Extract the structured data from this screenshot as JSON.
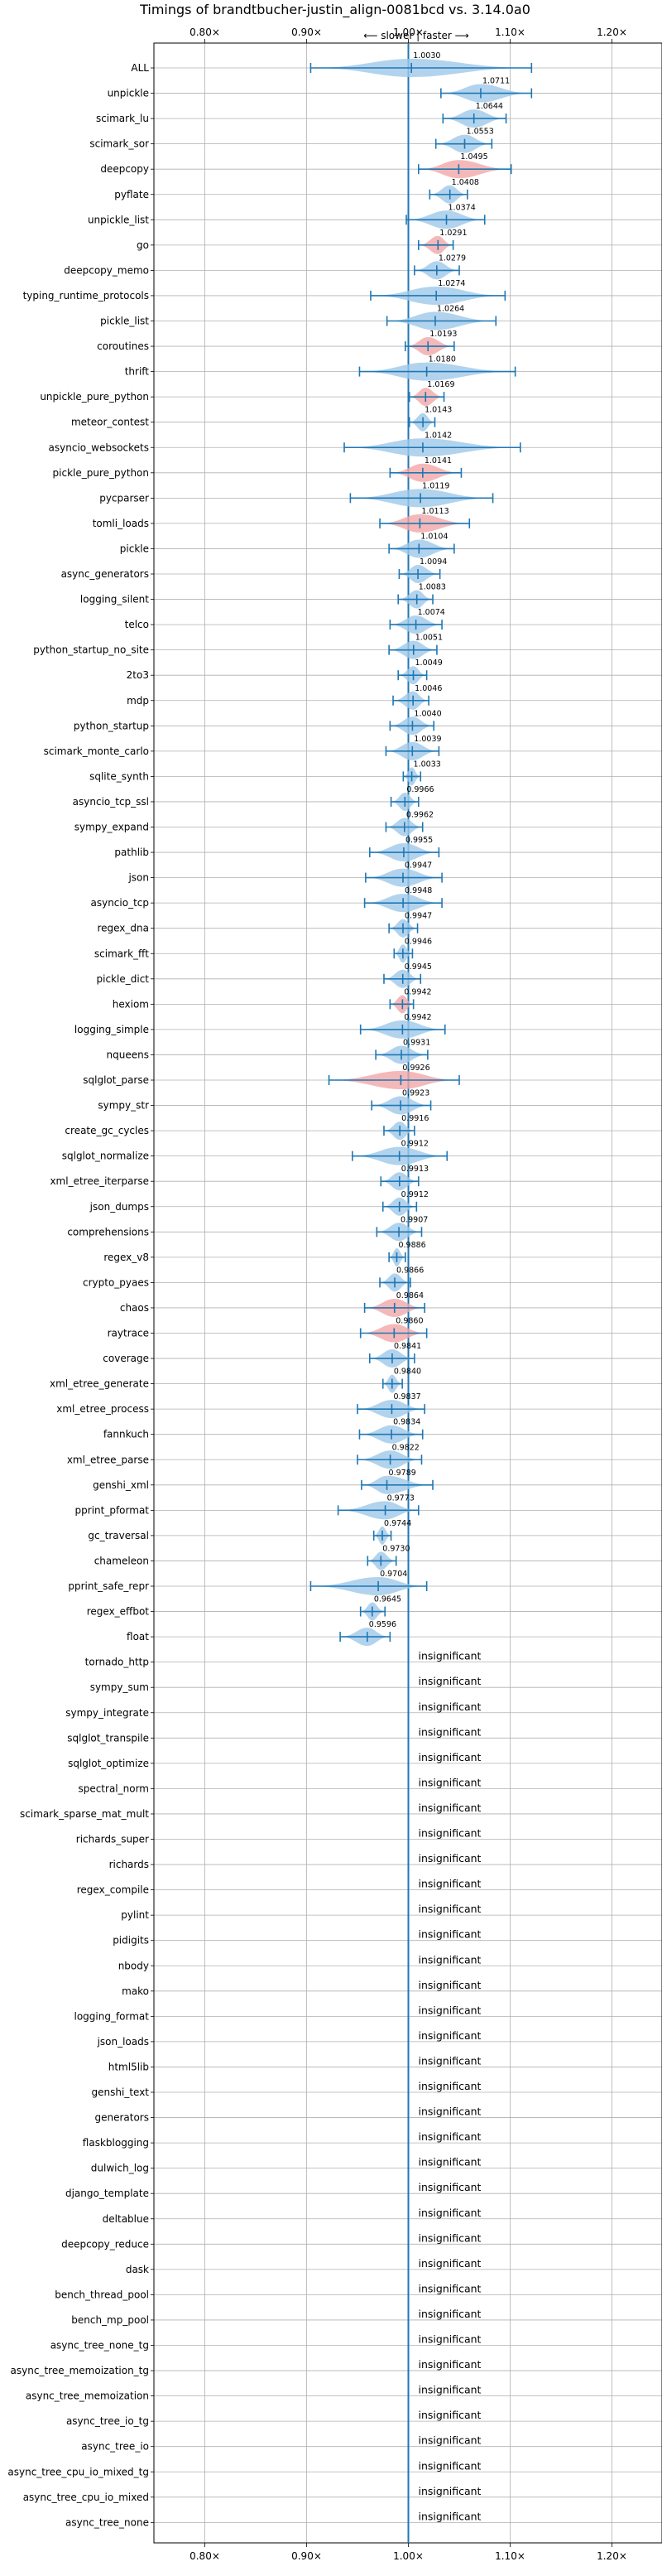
{
  "chart_data": {
    "type": "violin",
    "title": "Timings of brandtbucher-justin_align-0081bcd vs. 3.14.0a0",
    "direction_label": "⟵ slower | faster ⟶",
    "xlim": [
      0.75,
      1.25
    ],
    "xticks": [
      0.8,
      0.9,
      1.0,
      1.1,
      1.2
    ],
    "xtick_labels": [
      "0.80×",
      "0.90×",
      "1.00×",
      "1.10×",
      "1.20×"
    ],
    "reference_line": 1.0,
    "grid": true,
    "colors": {
      "faster": "#9fc8e8",
      "slower": "#f3a6a8",
      "accent": "#1f77b4",
      "grid": "#b0b0b0"
    },
    "insignificant_label": "insignificant",
    "benchmarks": [
      {
        "name": "ALL",
        "value": 1.003,
        "label": "1.0030",
        "min": 0.904,
        "max": 1.121,
        "color": "faster"
      },
      {
        "name": "unpickle",
        "value": 1.0711,
        "label": "1.0711",
        "min": 1.032,
        "max": 1.121,
        "color": "faster"
      },
      {
        "name": "scimark_lu",
        "value": 1.0644,
        "label": "1.0644",
        "min": 1.034,
        "max": 1.096,
        "color": "faster"
      },
      {
        "name": "scimark_sor",
        "value": 1.0553,
        "label": "1.0553",
        "min": 1.027,
        "max": 1.082,
        "color": "faster"
      },
      {
        "name": "deepcopy",
        "value": 1.0495,
        "label": "1.0495",
        "min": 1.01,
        "max": 1.101,
        "color": "slower"
      },
      {
        "name": "pyflate",
        "value": 1.0408,
        "label": "1.0408",
        "min": 1.021,
        "max": 1.058,
        "color": "faster"
      },
      {
        "name": "unpickle_list",
        "value": 1.0374,
        "label": "1.0374",
        "min": 0.998,
        "max": 1.075,
        "color": "faster"
      },
      {
        "name": "go",
        "value": 1.0291,
        "label": "1.0291",
        "min": 1.01,
        "max": 1.044,
        "color": "slower"
      },
      {
        "name": "deepcopy_memo",
        "value": 1.0279,
        "label": "1.0279",
        "min": 1.006,
        "max": 1.05,
        "color": "faster"
      },
      {
        "name": "typing_runtime_protocols",
        "value": 1.0274,
        "label": "1.0274",
        "min": 0.963,
        "max": 1.095,
        "color": "faster"
      },
      {
        "name": "pickle_list",
        "value": 1.0264,
        "label": "1.0264",
        "min": 0.979,
        "max": 1.086,
        "color": "faster"
      },
      {
        "name": "coroutines",
        "value": 1.0193,
        "label": "1.0193",
        "min": 0.997,
        "max": 1.045,
        "color": "slower"
      },
      {
        "name": "thrift",
        "value": 1.018,
        "label": "1.0180",
        "min": 0.952,
        "max": 1.105,
        "color": "faster"
      },
      {
        "name": "unpickle_pure_python",
        "value": 1.0169,
        "label": "1.0169",
        "min": 1.001,
        "max": 1.035,
        "color": "slower"
      },
      {
        "name": "meteor_contest",
        "value": 1.0143,
        "label": "1.0143",
        "min": 1.001,
        "max": 1.026,
        "color": "faster"
      },
      {
        "name": "asyncio_websockets",
        "value": 1.0142,
        "label": "1.0142",
        "min": 0.937,
        "max": 1.11,
        "color": "faster"
      },
      {
        "name": "pickle_pure_python",
        "value": 1.0141,
        "label": "1.0141",
        "min": 0.982,
        "max": 1.052,
        "color": "slower"
      },
      {
        "name": "pycparser",
        "value": 1.0119,
        "label": "1.0119",
        "min": 0.943,
        "max": 1.083,
        "color": "faster"
      },
      {
        "name": "tomli_loads",
        "value": 1.0113,
        "label": "1.0113",
        "min": 0.972,
        "max": 1.06,
        "color": "slower"
      },
      {
        "name": "pickle",
        "value": 1.0104,
        "label": "1.0104",
        "min": 0.981,
        "max": 1.045,
        "color": "faster"
      },
      {
        "name": "async_generators",
        "value": 1.0094,
        "label": "1.0094",
        "min": 0.991,
        "max": 1.031,
        "color": "faster"
      },
      {
        "name": "logging_silent",
        "value": 1.0083,
        "label": "1.0083",
        "min": 0.99,
        "max": 1.024,
        "color": "faster"
      },
      {
        "name": "telco",
        "value": 1.0074,
        "label": "1.0074",
        "min": 0.982,
        "max": 1.033,
        "color": "faster"
      },
      {
        "name": "python_startup_no_site",
        "value": 1.0051,
        "label": "1.0051",
        "min": 0.981,
        "max": 1.028,
        "color": "faster"
      },
      {
        "name": "2to3",
        "value": 1.0049,
        "label": "1.0049",
        "min": 0.99,
        "max": 1.018,
        "color": "faster"
      },
      {
        "name": "mdp",
        "value": 1.0046,
        "label": "1.0046",
        "min": 0.985,
        "max": 1.02,
        "color": "faster"
      },
      {
        "name": "python_startup",
        "value": 1.004,
        "label": "1.0040",
        "min": 0.982,
        "max": 1.025,
        "color": "faster"
      },
      {
        "name": "scimark_monte_carlo",
        "value": 1.0039,
        "label": "1.0039",
        "min": 0.978,
        "max": 1.03,
        "color": "faster"
      },
      {
        "name": "sqlite_synth",
        "value": 1.0033,
        "label": "1.0033",
        "min": 0.995,
        "max": 1.012,
        "color": "faster"
      },
      {
        "name": "asyncio_tcp_ssl",
        "value": 0.9966,
        "label": "0.9966",
        "min": 0.983,
        "max": 1.01,
        "color": "faster"
      },
      {
        "name": "sympy_expand",
        "value": 0.9962,
        "label": "0.9962",
        "min": 0.978,
        "max": 1.014,
        "color": "faster"
      },
      {
        "name": "pathlib",
        "value": 0.9955,
        "label": "0.9955",
        "min": 0.962,
        "max": 1.03,
        "color": "faster"
      },
      {
        "name": "json",
        "value": 0.9947,
        "label": "0.9947",
        "min": 0.958,
        "max": 1.033,
        "color": "faster"
      },
      {
        "name": "asyncio_tcp",
        "value": 0.9948,
        "label": "0.9948",
        "min": 0.957,
        "max": 1.033,
        "color": "faster"
      },
      {
        "name": "regex_dna",
        "value": 0.9947,
        "label": "0.9947",
        "min": 0.981,
        "max": 1.009,
        "color": "faster"
      },
      {
        "name": "scimark_fft",
        "value": 0.9946,
        "label": "0.9946",
        "min": 0.986,
        "max": 1.004,
        "color": "faster"
      },
      {
        "name": "pickle_dict",
        "value": 0.9945,
        "label": "0.9945",
        "min": 0.976,
        "max": 1.012,
        "color": "faster"
      },
      {
        "name": "hexiom",
        "value": 0.9942,
        "label": "0.9942",
        "min": 0.982,
        "max": 1.005,
        "color": "slower"
      },
      {
        "name": "logging_simple",
        "value": 0.9942,
        "label": "0.9942",
        "min": 0.953,
        "max": 1.036,
        "color": "faster"
      },
      {
        "name": "nqueens",
        "value": 0.9931,
        "label": "0.9931",
        "min": 0.968,
        "max": 1.019,
        "color": "faster"
      },
      {
        "name": "sqlglot_parse",
        "value": 0.9926,
        "label": "0.9926",
        "min": 0.922,
        "max": 1.05,
        "color": "slower"
      },
      {
        "name": "sympy_str",
        "value": 0.9923,
        "label": "0.9923",
        "min": 0.964,
        "max": 1.022,
        "color": "faster"
      },
      {
        "name": "create_gc_cycles",
        "value": 0.9916,
        "label": "0.9916",
        "min": 0.976,
        "max": 1.006,
        "color": "faster"
      },
      {
        "name": "sqlglot_normalize",
        "value": 0.9912,
        "label": "0.9912",
        "min": 0.945,
        "max": 1.038,
        "color": "faster"
      },
      {
        "name": "xml_etree_iterparse",
        "value": 0.9913,
        "label": "0.9913",
        "min": 0.973,
        "max": 1.01,
        "color": "faster"
      },
      {
        "name": "json_dumps",
        "value": 0.9912,
        "label": "0.9912",
        "min": 0.975,
        "max": 1.008,
        "color": "faster"
      },
      {
        "name": "comprehensions",
        "value": 0.9907,
        "label": "0.9907",
        "min": 0.969,
        "max": 1.013,
        "color": "faster"
      },
      {
        "name": "regex_v8",
        "value": 0.9886,
        "label": "0.9886",
        "min": 0.981,
        "max": 0.997,
        "color": "faster"
      },
      {
        "name": "crypto_pyaes",
        "value": 0.9866,
        "label": "0.9866",
        "min": 0.972,
        "max": 1.002,
        "color": "faster"
      },
      {
        "name": "chaos",
        "value": 0.9864,
        "label": "0.9864",
        "min": 0.957,
        "max": 1.016,
        "color": "slower"
      },
      {
        "name": "raytrace",
        "value": 0.986,
        "label": "0.9860",
        "min": 0.953,
        "max": 1.018,
        "color": "slower"
      },
      {
        "name": "coverage",
        "value": 0.9841,
        "label": "0.9841",
        "min": 0.962,
        "max": 1.006,
        "color": "faster"
      },
      {
        "name": "xml_etree_generate",
        "value": 0.984,
        "label": "0.9840",
        "min": 0.975,
        "max": 0.994,
        "color": "faster"
      },
      {
        "name": "xml_etree_process",
        "value": 0.9837,
        "label": "0.9837",
        "min": 0.95,
        "max": 1.016,
        "color": "faster"
      },
      {
        "name": "fannkuch",
        "value": 0.9834,
        "label": "0.9834",
        "min": 0.952,
        "max": 1.014,
        "color": "faster"
      },
      {
        "name": "xml_etree_parse",
        "value": 0.9822,
        "label": "0.9822",
        "min": 0.95,
        "max": 1.013,
        "color": "faster"
      },
      {
        "name": "genshi_xml",
        "value": 0.9789,
        "label": "0.9789",
        "min": 0.954,
        "max": 1.024,
        "color": "faster"
      },
      {
        "name": "pprint_pformat",
        "value": 0.9773,
        "label": "0.9773",
        "min": 0.931,
        "max": 1.01,
        "color": "faster"
      },
      {
        "name": "gc_traversal",
        "value": 0.9744,
        "label": "0.9744",
        "min": 0.966,
        "max": 0.983,
        "color": "faster"
      },
      {
        "name": "chameleon",
        "value": 0.973,
        "label": "0.9730",
        "min": 0.96,
        "max": 0.988,
        "color": "faster"
      },
      {
        "name": "pprint_safe_repr",
        "value": 0.9704,
        "label": "0.9704",
        "min": 0.904,
        "max": 1.018,
        "color": "faster"
      },
      {
        "name": "regex_effbot",
        "value": 0.9645,
        "label": "0.9645",
        "min": 0.953,
        "max": 0.977,
        "color": "faster"
      },
      {
        "name": "float",
        "value": 0.9596,
        "label": "0.9596",
        "min": 0.933,
        "max": 0.982,
        "color": "faster"
      }
    ],
    "insignificant": [
      "tornado_http",
      "sympy_sum",
      "sympy_integrate",
      "sqlglot_transpile",
      "sqlglot_optimize",
      "spectral_norm",
      "scimark_sparse_mat_mult",
      "richards_super",
      "richards",
      "regex_compile",
      "pylint",
      "pidigits",
      "nbody",
      "mako",
      "logging_format",
      "json_loads",
      "html5lib",
      "genshi_text",
      "generators",
      "flaskblogging",
      "dulwich_log",
      "django_template",
      "deltablue",
      "deepcopy_reduce",
      "dask",
      "bench_thread_pool",
      "bench_mp_pool",
      "async_tree_none_tg",
      "async_tree_memoization_tg",
      "async_tree_memoization",
      "async_tree_io_tg",
      "async_tree_io",
      "async_tree_cpu_io_mixed_tg",
      "async_tree_cpu_io_mixed",
      "async_tree_none"
    ]
  }
}
